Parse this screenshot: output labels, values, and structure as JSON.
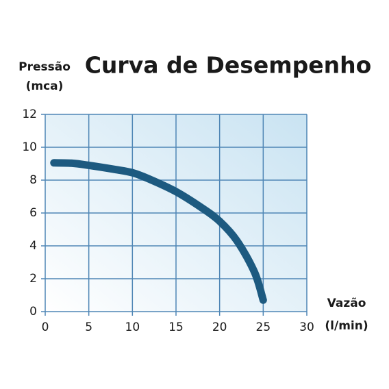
{
  "chart_data": {
    "type": "line",
    "title": "Curva de Desempenho",
    "ylabel": [
      "Pressão",
      "(mca)"
    ],
    "xlabel": [
      "Vazão",
      "(l/min)"
    ],
    "x": [
      1,
      3,
      5,
      8,
      10,
      12,
      15,
      18,
      20,
      22,
      24,
      25
    ],
    "series": [
      {
        "color": "#1d5a80",
        "values": [
          9.05,
          9.03,
          8.9,
          8.65,
          8.45,
          8.05,
          7.3,
          6.3,
          5.5,
          4.3,
          2.4,
          0.7
        ]
      }
    ],
    "xlim": [
      0,
      30
    ],
    "xticks": [
      0,
      5,
      10,
      15,
      20,
      25,
      30
    ],
    "ylim": [
      0,
      12
    ],
    "yticks": [
      0,
      2,
      4,
      6,
      8,
      10,
      12
    ],
    "grid": true
  }
}
